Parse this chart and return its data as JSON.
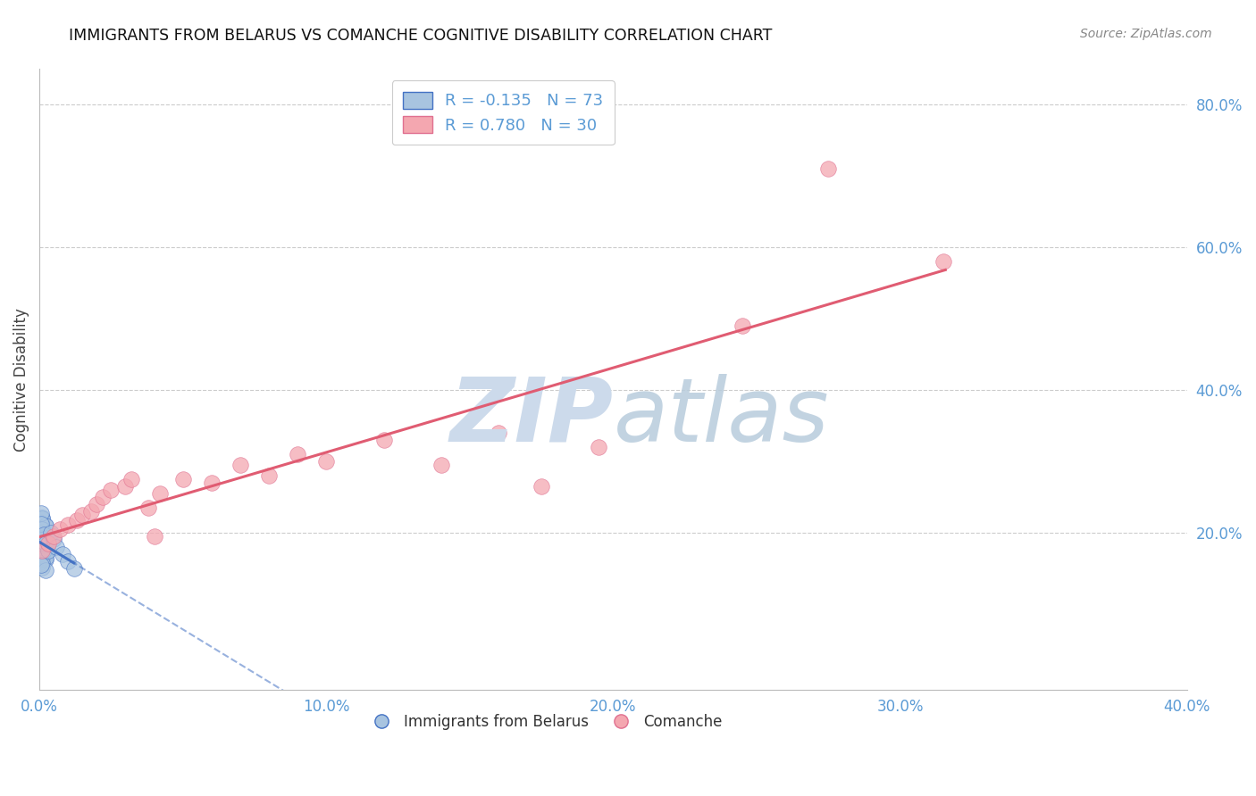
{
  "title": "IMMIGRANTS FROM BELARUS VS COMANCHE COGNITIVE DISABILITY CORRELATION CHART",
  "source": "Source: ZipAtlas.com",
  "accent_color": "#5b9bd5",
  "ylabel": "Cognitive Disability",
  "xlim": [
    0.0,
    0.4
  ],
  "ylim": [
    -0.02,
    0.85
  ],
  "xtick_vals": [
    0.0,
    0.1,
    0.2,
    0.3,
    0.4
  ],
  "ytick_vals_right": [
    0.2,
    0.4,
    0.6,
    0.8
  ],
  "color_blue": "#a8c4e0",
  "color_blue_edge": "#4472c4",
  "color_pink": "#f4a7b0",
  "color_pink_edge": "#e07090",
  "trendline_blue": "#4472c4",
  "trendline_pink": "#e05c72",
  "watermark_color": "#ccdaeb",
  "watermark_color2": "#b8ccdc",
  "background_color": "#ffffff",
  "grid_color": "#cccccc",
  "belarus_x": [
    0.0005,
    0.001,
    0.0015,
    0.001,
    0.002,
    0.001,
    0.0005,
    0.001,
    0.002,
    0.0005,
    0.001,
    0.002,
    0.001,
    0.0005,
    0.001,
    0.0008,
    0.001,
    0.002,
    0.0005,
    0.001,
    0.001,
    0.0005,
    0.001,
    0.002,
    0.0005,
    0.001,
    0.0015,
    0.0005,
    0.001,
    0.0008,
    0.001,
    0.002,
    0.001,
    0.0005,
    0.001,
    0.0015,
    0.0005,
    0.001,
    0.0008,
    0.001,
    0.001,
    0.002,
    0.0005,
    0.001,
    0.0015,
    0.0005,
    0.001,
    0.0008,
    0.001,
    0.0015,
    0.001,
    0.0005,
    0.0015,
    0.001,
    0.002,
    0.0005,
    0.0015,
    0.001,
    0.0005,
    0.001,
    0.002,
    0.0005,
    0.001,
    0.0015,
    0.0005,
    0.002,
    0.003,
    0.004,
    0.005,
    0.006,
    0.008,
    0.01,
    0.012
  ],
  "belarus_y": [
    0.195,
    0.185,
    0.195,
    0.175,
    0.195,
    0.165,
    0.19,
    0.18,
    0.17,
    0.165,
    0.195,
    0.17,
    0.16,
    0.182,
    0.192,
    0.172,
    0.163,
    0.183,
    0.2,
    0.192,
    0.172,
    0.215,
    0.152,
    0.163,
    0.182,
    0.17,
    0.193,
    0.202,
    0.163,
    0.184,
    0.222,
    0.21,
    0.172,
    0.192,
    0.175,
    0.188,
    0.178,
    0.192,
    0.182,
    0.22,
    0.193,
    0.21,
    0.228,
    0.195,
    0.185,
    0.192,
    0.188,
    0.205,
    0.195,
    0.185,
    0.175,
    0.19,
    0.182,
    0.172,
    0.165,
    0.193,
    0.175,
    0.183,
    0.213,
    0.158,
    0.148,
    0.175,
    0.185,
    0.198,
    0.155,
    0.185,
    0.175,
    0.2,
    0.192,
    0.18,
    0.17,
    0.16,
    0.15
  ],
  "comanche_x": [
    0.001,
    0.003,
    0.005,
    0.007,
    0.01,
    0.013,
    0.015,
    0.018,
    0.02,
    0.022,
    0.025,
    0.03,
    0.032,
    0.038,
    0.04,
    0.042,
    0.05,
    0.06,
    0.07,
    0.08,
    0.09,
    0.1,
    0.12,
    0.14,
    0.16,
    0.175,
    0.195,
    0.245,
    0.275,
    0.315
  ],
  "comanche_y": [
    0.175,
    0.185,
    0.195,
    0.205,
    0.212,
    0.218,
    0.225,
    0.23,
    0.24,
    0.25,
    0.26,
    0.265,
    0.275,
    0.235,
    0.195,
    0.255,
    0.275,
    0.27,
    0.295,
    0.28,
    0.31,
    0.3,
    0.33,
    0.295,
    0.34,
    0.265,
    0.32,
    0.49,
    0.71,
    0.58
  ],
  "r_belarus": -0.135,
  "n_belarus": 73,
  "r_comanche": 0.78,
  "n_comanche": 30
}
